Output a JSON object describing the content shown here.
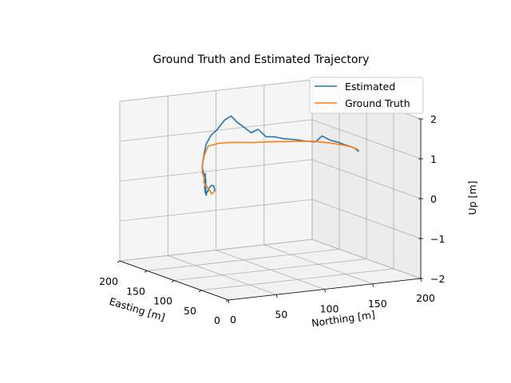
{
  "chart_data": {
    "type": "line",
    "projection": "3d",
    "title": "Ground Truth and Estimated Trajectory",
    "xlabel": "Easting [m]",
    "ylabel": "Northing [m]",
    "zlabel": "Up [m]",
    "xlim": [
      0,
      200
    ],
    "ylim": [
      0,
      200
    ],
    "zlim": [
      -2,
      2
    ],
    "xticks": [
      "0",
      "50",
      "100",
      "150",
      "200"
    ],
    "yticks": [
      "0",
      "50",
      "100",
      "150",
      "200"
    ],
    "zticks": [
      "−2",
      "−1",
      "0",
      "1",
      "2"
    ],
    "grid": true,
    "legend_position": "top-right",
    "series": [
      {
        "name": "Estimated",
        "color": "#1f77b4",
        "points": [
          [
            25,
            0,
            0.6
          ],
          [
            30,
            2,
            0.7
          ],
          [
            38,
            4,
            0.68
          ],
          [
            48,
            7,
            0.55
          ],
          [
            55,
            10,
            0.45
          ],
          [
            62,
            14,
            0.38
          ],
          [
            70,
            18,
            0.34
          ],
          [
            80,
            22,
            0.2
          ],
          [
            88,
            27,
            0.12
          ],
          [
            98,
            32,
            0.1
          ],
          [
            102,
            34,
            0.45
          ],
          [
            106,
            36,
            0.05
          ],
          [
            114,
            40,
            0.1
          ],
          [
            118,
            42,
            0.42
          ],
          [
            124,
            46,
            0.44
          ],
          [
            128,
            48,
            0.05
          ],
          [
            136,
            52,
            0.0
          ],
          [
            144,
            57,
            0.05
          ],
          [
            150,
            60,
            0.1
          ],
          [
            158,
            64,
            0.12
          ],
          [
            164,
            67,
            0.15
          ],
          [
            172,
            70,
            0.3
          ],
          [
            178,
            74,
            0.4
          ],
          [
            183,
            78,
            0.55
          ],
          [
            186,
            82,
            0.78
          ],
          [
            184,
            86,
            1.0
          ],
          [
            180,
            90,
            1.15
          ],
          [
            175,
            95,
            1.4
          ],
          [
            172,
            100,
            1.5
          ],
          [
            168,
            104,
            1.35
          ],
          [
            164,
            108,
            1.25
          ],
          [
            160,
            114,
            1.1
          ],
          [
            158,
            120,
            1.18
          ],
          [
            154,
            126,
            1.0
          ],
          [
            150,
            132,
            1.0
          ],
          [
            146,
            140,
            0.95
          ],
          [
            142,
            150,
            0.92
          ],
          [
            138,
            158,
            0.88
          ],
          [
            134,
            166,
            0.86
          ],
          [
            132,
            172,
            1.0
          ],
          [
            128,
            178,
            0.9
          ],
          [
            124,
            184,
            0.85
          ],
          [
            120,
            190,
            0.78
          ],
          [
            116,
            196,
            0.72
          ],
          [
            114,
            200,
            0.62
          ]
        ]
      },
      {
        "name": "Ground Truth",
        "color": "#ff7f0e",
        "points": [
          [
            25,
            0,
            0.6
          ],
          [
            40,
            5,
            0.45
          ],
          [
            60,
            15,
            0.4
          ],
          [
            85,
            25,
            0.38
          ],
          [
            95,
            30,
            0.3
          ],
          [
            110,
            38,
            0.25
          ],
          [
            125,
            45,
            0.22
          ],
          [
            140,
            54,
            0.22
          ],
          [
            158,
            62,
            0.25
          ],
          [
            172,
            70,
            0.35
          ],
          [
            182,
            78,
            0.55
          ],
          [
            186,
            84,
            0.72
          ],
          [
            180,
            92,
            0.8
          ],
          [
            170,
            100,
            0.85
          ],
          [
            155,
            115,
            0.88
          ],
          [
            150,
            130,
            0.88
          ],
          [
            145,
            150,
            0.86
          ],
          [
            138,
            165,
            0.86
          ],
          [
            130,
            178,
            0.82
          ],
          [
            122,
            188,
            0.78
          ],
          [
            116,
            196,
            0.72
          ],
          [
            114,
            200,
            0.66
          ]
        ]
      }
    ]
  }
}
